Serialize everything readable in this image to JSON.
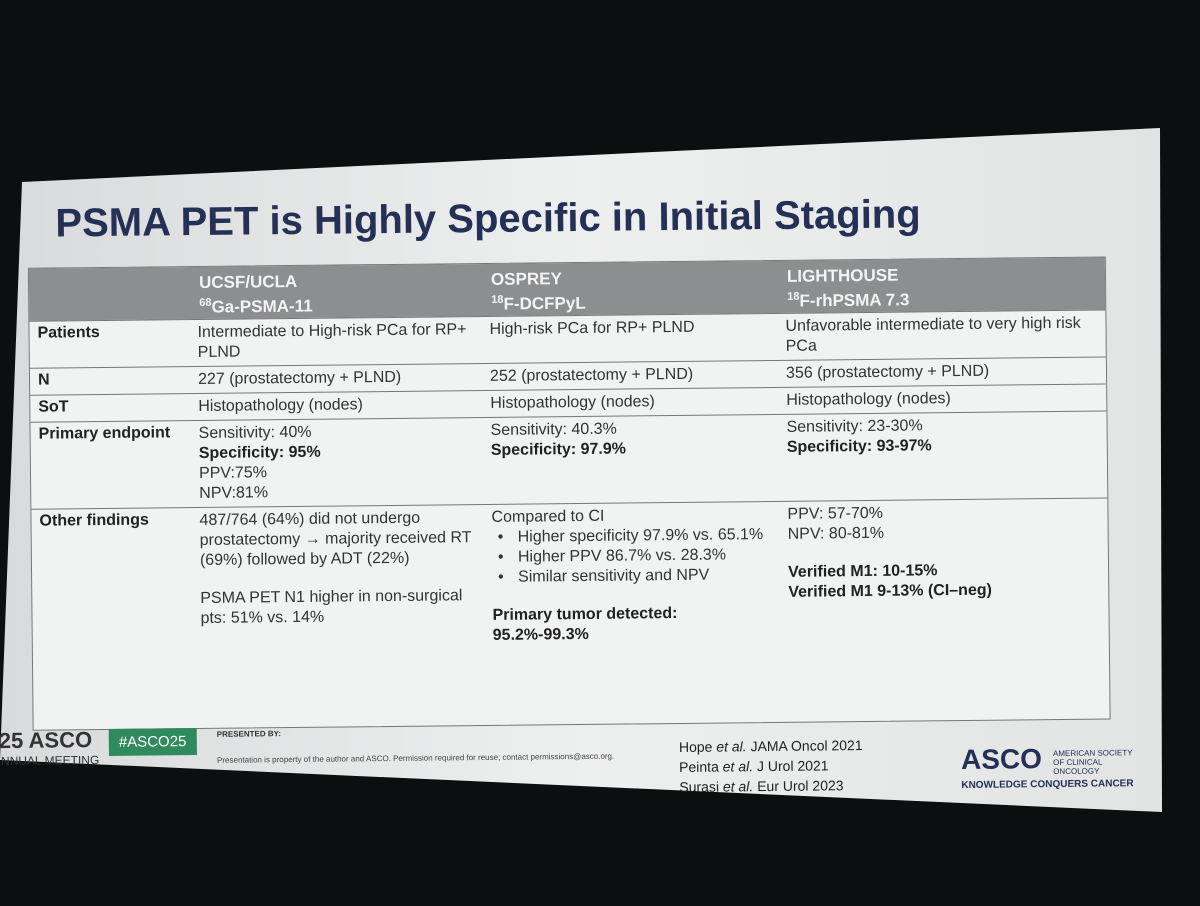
{
  "title": "PSMA PET is Highly Specific in Initial Staging",
  "table": {
    "columns": [
      {
        "name": "UCSF/UCLA",
        "isotope": "68",
        "tracer": "Ga-PSMA-11"
      },
      {
        "name": "OSPREY",
        "isotope": "18",
        "tracer": "F-DCFPyL"
      },
      {
        "name": "LIGHTHOUSE",
        "isotope": "18",
        "tracer": "F-rhPSMA 7.3"
      }
    ],
    "rows": [
      {
        "label": "Patients",
        "cells": [
          [
            [
              {
                "text": "Intermediate to High-risk PCa for RP+ PLND"
              }
            ]
          ],
          [
            [
              {
                "text": "High-risk PCa for RP+ PLND"
              }
            ]
          ],
          [
            [
              {
                "text": "Unfavorable intermediate to very high risk PCa"
              }
            ]
          ]
        ]
      },
      {
        "label": "N",
        "cells": [
          [
            [
              {
                "text": "227 (prostatectomy + PLND)"
              }
            ]
          ],
          [
            [
              {
                "text": "252 (prostatectomy + PLND)"
              }
            ]
          ],
          [
            [
              {
                "text": "356 (prostatectomy + PLND)"
              }
            ]
          ]
        ]
      },
      {
        "label": "SoT",
        "cells": [
          [
            [
              {
                "text": "Histopathology (nodes)"
              }
            ]
          ],
          [
            [
              {
                "text": "Histopathology (nodes)"
              }
            ]
          ],
          [
            [
              {
                "text": "Histopathology (nodes)"
              }
            ]
          ]
        ]
      },
      {
        "label": "Primary endpoint",
        "cells": [
          [
            [
              {
                "text": "Sensitivity: 40%"
              },
              {
                "text": "Specificity: 95%",
                "bold": true
              },
              {
                "text": "PPV:75%"
              },
              {
                "text": "NPV:81%"
              }
            ]
          ],
          [
            [
              {
                "text": "Sensitivity: 40.3%"
              },
              {
                "text": "Specificity: 97.9%",
                "bold": true
              }
            ]
          ],
          [
            [
              {
                "text": "Sensitivity: 23-30%"
              },
              {
                "text": "Specificity: 93-97%",
                "bold": true
              }
            ]
          ]
        ]
      },
      {
        "label": "Other findings",
        "cells": [
          [
            [
              {
                "text": "487/764 (64%) did not undergo prostatectomy → majority received RT (69%) followed by ADT (22%)"
              }
            ],
            [
              {
                "text": "PSMA PET N1 higher in non-surgical pts: 51% vs. 14%"
              }
            ]
          ],
          [
            [
              {
                "text": "Compared to CI"
              },
              {
                "text": "Higher specificity 97.9% vs. 65.1%",
                "bullet": true
              },
              {
                "text": "Higher  PPV 86.7% vs. 28.3%",
                "bullet": true
              },
              {
                "text": "Similar sensitivity and NPV",
                "bullet": true
              }
            ],
            [
              {
                "text": "Primary tumor detected: 95.2%-99.3%",
                "bold": true
              }
            ]
          ],
          [
            [
              {
                "text": "PPV: 57-70%"
              },
              {
                "text": "NPV: 80-81%"
              }
            ],
            [
              {
                "text": "Verified M1: 10-15%",
                "bold": true
              },
              {
                "text": "Verified M1 9-13% (CI–neg)",
                "bold": true
              }
            ]
          ]
        ]
      }
    ]
  },
  "footer": {
    "meeting_year": "25 ASCO",
    "meeting_name": "NNUAL MEETING",
    "hashtag": "#ASCO25",
    "presented_by": "PRESENTED BY:",
    "notice": "Presentation is property of the author and ASCO. Permission required for reuse; contact permissions@asco.org.",
    "references": [
      {
        "author": "Hope",
        "etal": "et al.",
        "source": "JAMA Oncol 2021"
      },
      {
        "author": "Peinta",
        "etal": "et al.",
        "source": "J Urol 2021"
      },
      {
        "author": "Surasi",
        "etal": "et al.",
        "source": "Eur Urol 2023"
      }
    ],
    "logo": {
      "name": "ASCO",
      "society": "AMERICAN SOCIETY OF CLINICAL ONCOLOGY",
      "tagline": "KNOWLEDGE CONQUERS CANCER"
    }
  }
}
